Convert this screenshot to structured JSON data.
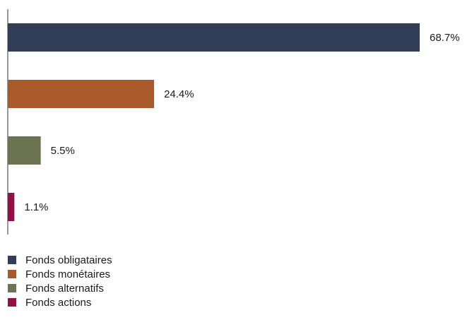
{
  "chart_data": {
    "type": "bar",
    "orientation": "horizontal",
    "categories": [
      "Fonds obligataires",
      "Fonds monétaires",
      "Fonds alternatifs",
      "Fonds actions"
    ],
    "values": [
      68.7,
      24.4,
      5.5,
      1.1
    ],
    "value_labels": [
      "68.7%",
      "24.4%",
      "5.5%",
      "1.1%"
    ],
    "colors": [
      "#323d58",
      "#a85a2b",
      "#6b7450",
      "#930f45"
    ],
    "unit": "%",
    "xlim": [
      0,
      70
    ],
    "grid": false,
    "legend": "bottom-left",
    "title": "",
    "xlabel": "",
    "ylabel": ""
  }
}
